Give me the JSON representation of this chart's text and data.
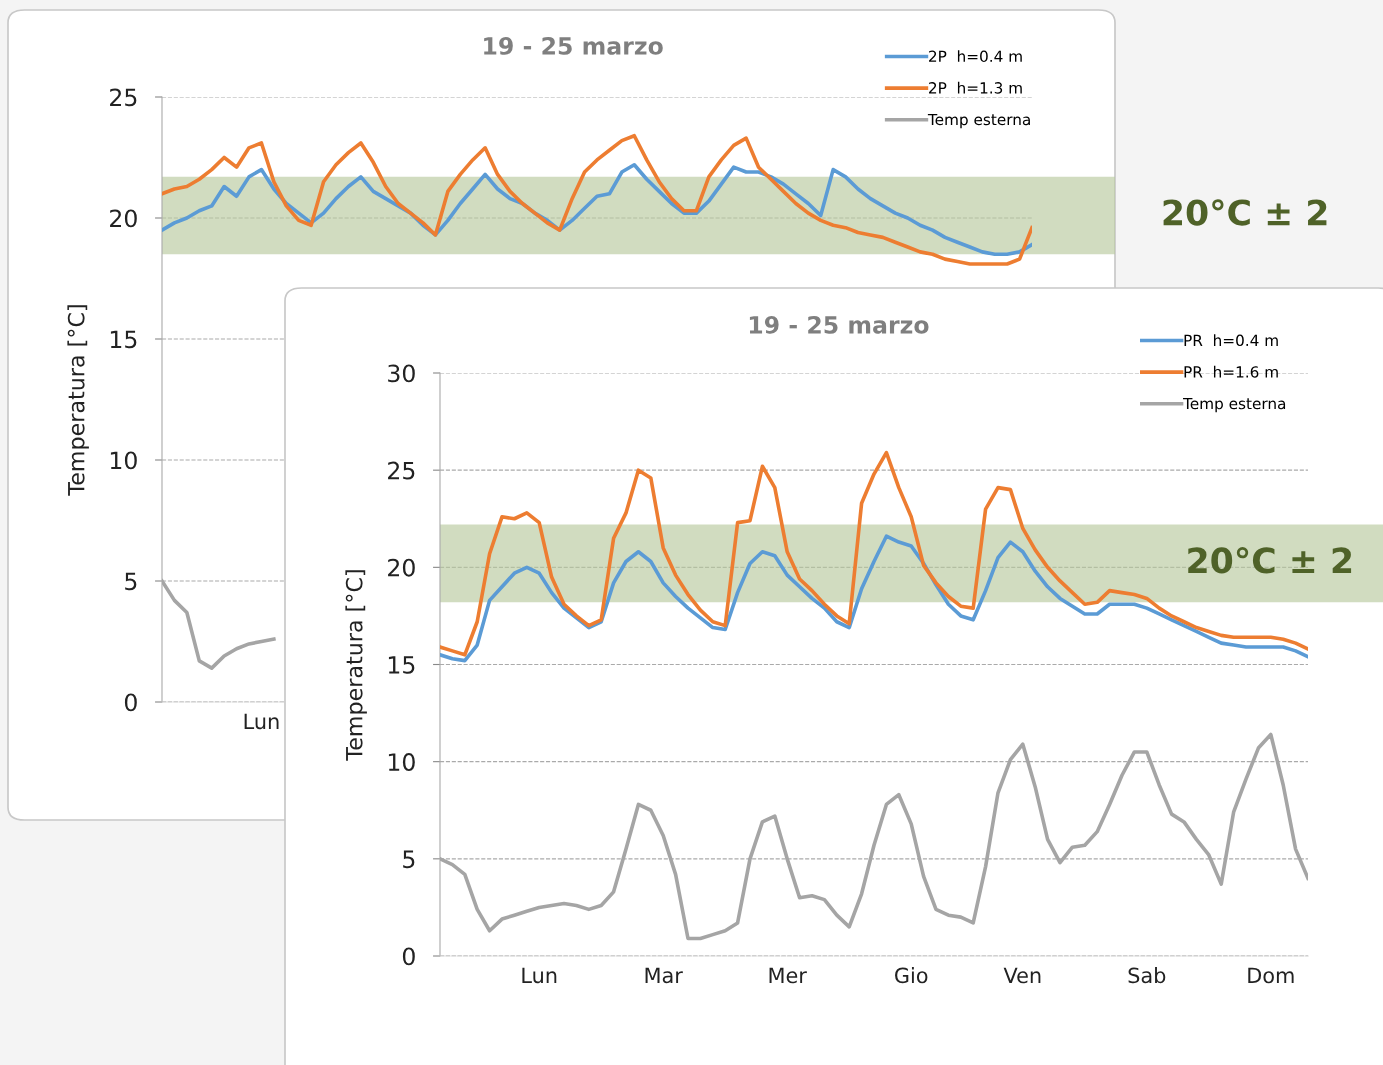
{
  "chart_data": [
    {
      "type": "line",
      "title": "19 - 25 marzo",
      "ylabel": "Temperatura [°C]",
      "ylim": [
        0,
        25
      ],
      "yticks": [
        0,
        5,
        10,
        15,
        20,
        25
      ],
      "categories": [
        null,
        null,
        null,
        null,
        null,
        null,
        null,
        null,
        "Lun",
        null,
        null,
        null,
        null,
        null,
        null,
        null,
        null,
        null,
        null,
        null,
        null,
        null,
        null,
        null,
        null,
        null,
        null,
        null,
        null,
        null,
        null,
        null,
        null,
        null,
        null,
        null,
        null,
        null,
        null,
        null,
        null,
        null,
        null,
        null,
        null,
        null,
        null,
        null,
        null,
        null,
        null,
        null,
        null,
        null,
        null,
        null,
        null,
        null,
        null,
        null,
        null,
        null,
        null,
        null,
        null,
        null,
        null,
        null,
        null,
        null,
        null
      ],
      "grid": "y",
      "legend": "top right",
      "bands": [
        {
          "axis": "y",
          "from": 18.5,
          "to": 21.7,
          "label": "20°C ± 2",
          "color": "#b8c99e"
        }
      ],
      "series": [
        {
          "name": "2P  h=0.4 m",
          "color": "#5b9bd5",
          "values": [
            19.5,
            19.8,
            20.0,
            20.3,
            20.5,
            21.3,
            20.9,
            21.7,
            22.0,
            21.2,
            20.6,
            20.2,
            19.8,
            20.2,
            20.8,
            21.3,
            21.7,
            21.1,
            20.8,
            20.5,
            20.2,
            19.7,
            19.3,
            19.9,
            20.6,
            21.2,
            21.8,
            21.2,
            20.8,
            20.6,
            20.2,
            19.9,
            19.5,
            19.9,
            20.4,
            20.9,
            21.0,
            21.9,
            22.2,
            21.6,
            21.1,
            20.6,
            20.2,
            20.2,
            20.7,
            21.4,
            22.1,
            21.9,
            21.9,
            21.7,
            21.4,
            21.0,
            20.6,
            20.1,
            22.0,
            21.7,
            21.2,
            20.8,
            20.5,
            20.2,
            20.0,
            19.7,
            19.5,
            19.2,
            19.0,
            18.8,
            18.6,
            18.5,
            18.5,
            18.6,
            18.9
          ]
        },
        {
          "name": "2P  h=1.3 m",
          "color": "#ed7d31",
          "values": [
            21.0,
            21.2,
            21.3,
            21.6,
            22.0,
            22.5,
            22.1,
            22.9,
            23.1,
            21.5,
            20.5,
            19.9,
            19.7,
            21.5,
            22.2,
            22.7,
            23.1,
            22.3,
            21.3,
            20.6,
            20.2,
            19.8,
            19.3,
            21.1,
            21.8,
            22.4,
            22.9,
            21.8,
            21.1,
            20.6,
            20.2,
            19.8,
            19.5,
            20.8,
            21.9,
            22.4,
            22.8,
            23.2,
            23.4,
            22.4,
            21.5,
            20.8,
            20.3,
            20.3,
            21.7,
            22.4,
            23.0,
            23.3,
            22.1,
            21.6,
            21.1,
            20.6,
            20.2,
            19.9,
            19.7,
            19.6,
            19.4,
            19.3,
            19.2,
            19.0,
            18.8,
            18.6,
            18.5,
            18.3,
            18.2,
            18.1,
            18.1,
            18.1,
            18.1,
            18.3,
            19.6
          ]
        },
        {
          "name": "Temp esterna",
          "color": "#a5a5a5",
          "values": [
            5.0,
            4.2,
            3.7,
            1.7,
            1.4,
            1.9,
            2.2,
            2.4,
            2.5,
            2.6,
            null,
            null,
            null,
            null,
            null,
            null,
            null,
            null,
            null,
            null,
            null,
            null,
            null,
            null,
            null,
            null,
            null,
            null,
            null,
            null,
            null,
            null,
            null,
            null,
            null,
            null,
            null,
            null,
            null,
            null,
            null,
            null,
            null,
            null,
            null,
            null,
            null,
            null,
            null,
            null,
            null,
            null,
            null,
            null,
            null,
            null,
            null,
            null,
            null,
            null,
            null,
            null,
            null,
            null,
            null,
            null,
            null,
            null,
            null,
            null,
            null
          ]
        }
      ]
    },
    {
      "type": "line",
      "title": "19 - 25 marzo",
      "ylabel": "Temperatura [°C]",
      "ylim": [
        0,
        30
      ],
      "yticks": [
        0,
        5,
        10,
        15,
        20,
        25,
        30
      ],
      "categories": [
        null,
        null,
        null,
        null,
        null,
        null,
        null,
        null,
        "Lun",
        null,
        null,
        null,
        null,
        null,
        null,
        null,
        null,
        null,
        "Mar",
        null,
        null,
        null,
        null,
        null,
        null,
        null,
        null,
        null,
        "Mer",
        null,
        null,
        null,
        null,
        null,
        null,
        null,
        null,
        null,
        "Gio",
        null,
        null,
        null,
        null,
        null,
        null,
        null,
        null,
        "Ven",
        null,
        null,
        null,
        null,
        null,
        null,
        null,
        null,
        null,
        "Sab",
        null,
        null,
        null,
        null,
        null,
        null,
        null,
        null,
        null,
        "Dom",
        null,
        null,
        null
      ],
      "grid": "y",
      "legend": "top right",
      "bands": [
        {
          "axis": "y",
          "from": 18.2,
          "to": 22.2,
          "label": "20°C ± 2",
          "color": "#b8c99e"
        }
      ],
      "series": [
        {
          "name": "PR  h=0.4 m",
          "color": "#5b9bd5",
          "values": [
            15.5,
            15.3,
            15.2,
            16.0,
            18.3,
            19.0,
            19.7,
            20.0,
            19.7,
            18.7,
            17.9,
            17.4,
            16.9,
            17.2,
            19.2,
            20.3,
            20.8,
            20.3,
            19.2,
            18.5,
            17.9,
            17.4,
            16.9,
            16.8,
            18.7,
            20.2,
            20.8,
            20.6,
            19.6,
            19.0,
            18.4,
            17.9,
            17.2,
            16.9,
            18.9,
            20.3,
            21.6,
            21.3,
            21.1,
            20.2,
            19.1,
            18.1,
            17.5,
            17.3,
            18.8,
            20.5,
            21.3,
            20.8,
            19.8,
            19.0,
            18.4,
            18.0,
            17.6,
            17.6,
            18.1,
            18.1,
            18.1,
            17.9,
            17.6,
            17.3,
            17.0,
            16.7,
            16.4,
            16.1,
            16.0,
            15.9,
            15.9,
            15.9,
            15.9,
            15.7,
            15.4
          ]
        },
        {
          "name": "PR  h=1.6 m",
          "color": "#ed7d31",
          "values": [
            15.9,
            15.7,
            15.5,
            17.2,
            20.7,
            22.6,
            22.5,
            22.8,
            22.3,
            19.5,
            18.1,
            17.5,
            17.0,
            17.3,
            21.5,
            22.8,
            25.0,
            24.6,
            21.0,
            19.6,
            18.6,
            17.8,
            17.2,
            17.0,
            22.3,
            22.4,
            25.2,
            24.1,
            20.8,
            19.4,
            18.8,
            18.1,
            17.5,
            17.1,
            23.3,
            24.8,
            25.9,
            24.1,
            22.6,
            20.1,
            19.2,
            18.5,
            18.0,
            17.9,
            23.0,
            24.1,
            24.0,
            22.0,
            20.9,
            20.0,
            19.3,
            18.7,
            18.1,
            18.2,
            18.8,
            18.7,
            18.6,
            18.4,
            17.9,
            17.5,
            17.2,
            16.9,
            16.7,
            16.5,
            16.4,
            16.4,
            16.4,
            16.4,
            16.3,
            16.1,
            15.8
          ]
        },
        {
          "name": "Temp esterna",
          "color": "#a5a5a5",
          "values": [
            5.0,
            4.7,
            4.2,
            2.4,
            1.3,
            1.9,
            2.1,
            2.3,
            2.5,
            2.6,
            2.7,
            2.6,
            2.4,
            2.6,
            3.3,
            5.5,
            7.8,
            7.5,
            6.2,
            4.2,
            0.9,
            0.9,
            1.1,
            1.3,
            1.7,
            5.0,
            6.9,
            7.2,
            5.0,
            3.0,
            3.1,
            2.9,
            2.1,
            1.5,
            3.2,
            5.7,
            7.8,
            8.3,
            6.8,
            4.1,
            2.4,
            2.1,
            2.0,
            1.7,
            4.6,
            8.4,
            10.1,
            10.9,
            8.7,
            6.0,
            4.8,
            5.6,
            5.7,
            6.4,
            7.8,
            9.3,
            10.5,
            10.5,
            8.8,
            7.3,
            6.9,
            6.0,
            5.2,
            3.7,
            7.4,
            9.1,
            10.7,
            11.4,
            8.8,
            5.5,
            4.0
          ]
        }
      ]
    }
  ]
}
